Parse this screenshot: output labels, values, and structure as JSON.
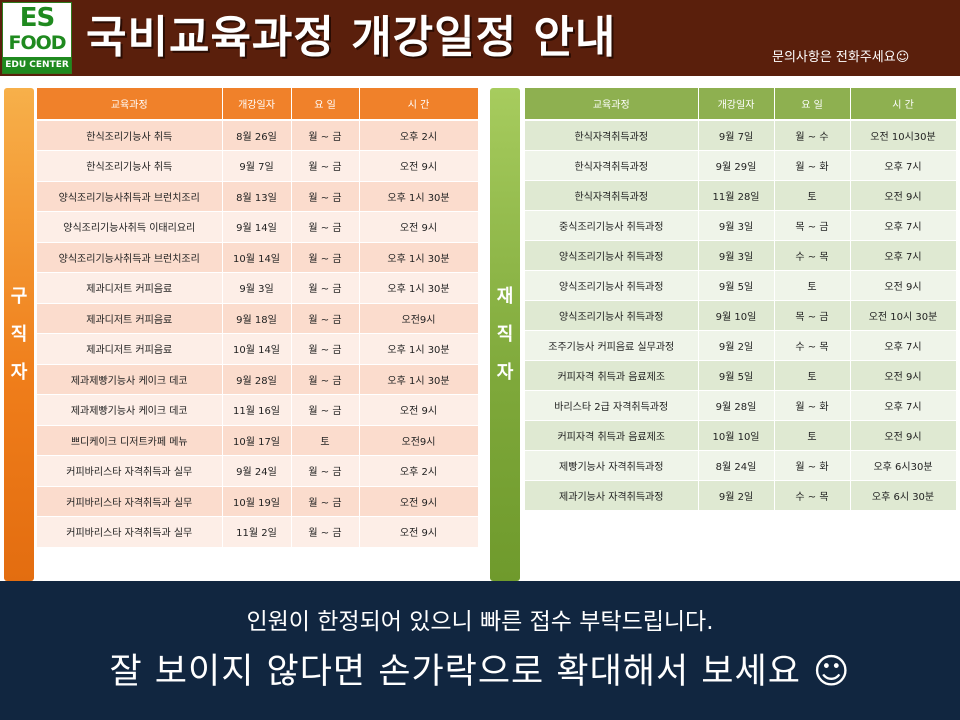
{
  "header": {
    "logo_line1": "ES",
    "logo_line2": "FOOD",
    "logo_line3": "EDU CENTER",
    "title": "국비교육과정 개강일정 안내",
    "contact": "문의사항은 전화주세요☺"
  },
  "sections": {
    "left_label": [
      "구",
      "직",
      "자"
    ],
    "right_label": [
      "재",
      "직",
      "자"
    ]
  },
  "columns": [
    "교육과정",
    "개강일자",
    "요 일",
    "시 간"
  ],
  "job_seekers": [
    [
      "한식조리기능사 취득",
      "8월 26일",
      "월 ~ 금",
      "오후 2시"
    ],
    [
      "한식조리기능사 취득",
      "9월 7일",
      "월 ~ 금",
      "오전 9시"
    ],
    [
      "양식조리기능사취득과 브런치조리",
      "8월 13일",
      "월 ~ 금",
      "오후 1시 30분"
    ],
    [
      "양식조리기능사취득 이태리요리",
      "9월 14일",
      "월 ~ 금",
      "오전 9시"
    ],
    [
      "양식조리기능사취득과 브런치조리",
      "10월 14일",
      "월 ~ 금",
      "오후 1시 30분"
    ],
    [
      "제과디저트 커피음료",
      "9월 3일",
      "월 ~ 금",
      "오후 1시 30분"
    ],
    [
      "제과디저트 커피음료",
      "9월 18일",
      "월 ~ 금",
      "오전9시"
    ],
    [
      "제과디저트 커피음료",
      "10월 14일",
      "월 ~ 금",
      "오후 1시 30분"
    ],
    [
      "제과제빵기능사 케이크 데코",
      "9월 28일",
      "월 ~ 금",
      "오후 1시 30분"
    ],
    [
      "제과제빵기능사 케이크 데코",
      "11월 16일",
      "월 ~ 금",
      "오전 9시"
    ],
    [
      "쁘디케이크 디저트카페 메뉴",
      "10월 17일",
      "토",
      "오전9시"
    ],
    [
      "커피바리스타 자격취득과 실무",
      "9월 24일",
      "월 ~ 금",
      "오후 2시"
    ],
    [
      "커피바리스타 자격취득과 실무",
      "10월 19일",
      "월 ~ 금",
      "오전 9시"
    ],
    [
      "커피바리스타 자격취득과 실무",
      "11월 2일",
      "월 ~ 금",
      "오전 9시"
    ]
  ],
  "employees": [
    [
      "한식자격취득과정",
      "9월 7일",
      "월 ~ 수",
      "오전 10시30분"
    ],
    [
      "한식자격취득과정",
      "9월 29일",
      "월 ~ 화",
      "오후 7시"
    ],
    [
      "한식자격취득과정",
      "11월 28일",
      "토",
      "오전 9시"
    ],
    [
      "중식조리기능사 취득과정",
      "9월 3일",
      "목 ~ 금",
      "오후 7시"
    ],
    [
      "양식조리기능사 취득과정",
      "9월 3일",
      "수 ~ 목",
      "오후 7시"
    ],
    [
      "양식조리기능사 취득과정",
      "9월 5일",
      "토",
      "오전 9시"
    ],
    [
      "양식조리기능사 취득과정",
      "9월 10일",
      "목 ~ 금",
      "오전 10시 30분"
    ],
    [
      "조주기능사 커피음료 실무과정",
      "9월 2일",
      "수 ~ 목",
      "오후 7시"
    ],
    [
      "커피자격 취득과 음료제조",
      "9월 5일",
      "토",
      "오전 9시"
    ],
    [
      "바리스타 2급 자격취득과정",
      "9월 28일",
      "월 ~ 화",
      "오후 7시"
    ],
    [
      "커피자격 취득과 음료제조",
      "10월 10일",
      "토",
      "오전 9시"
    ],
    [
      "제빵기능사 자격취득과정",
      "8월 24일",
      "월 ~ 화",
      "오후 6시30분"
    ],
    [
      "제과기능사 자격취득과정",
      "9월 2일",
      "수 ~ 목",
      "오후 6시 30분"
    ]
  ],
  "footer": {
    "line1": "인원이 한정되어 있으니 빠른 접수 부탁드립니다.",
    "line2": "잘 보이지 않다면 손가락으로 확대해서 보세요 ☺"
  },
  "colors": {
    "header_bg": "#5a1f0c",
    "left_accent": "#f0812a",
    "right_accent": "#8eb050",
    "footer_bg": "#112640"
  }
}
